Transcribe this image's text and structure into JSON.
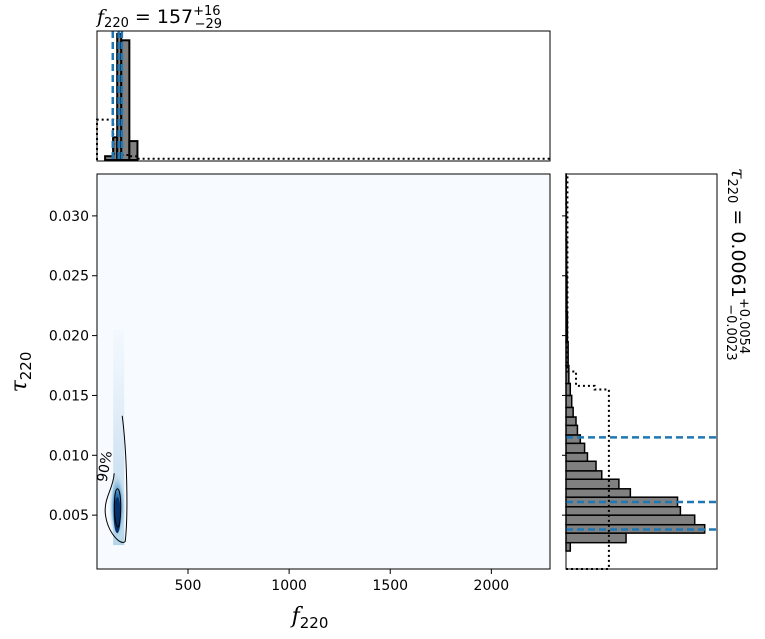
{
  "chart_data": {
    "type": "corner",
    "main": {
      "type": "heatmap",
      "x": {
        "symbol": "f",
        "subscript": "220",
        "ticks": [
          500,
          1000,
          1500,
          2000
        ],
        "range": [
          50,
          2290
        ]
      },
      "y": {
        "symbol": "τ",
        "subscript": "220",
        "ticks": [
          0.005,
          0.01,
          0.015,
          0.02,
          0.025,
          0.03
        ],
        "tick_labels": [
          "0.005",
          "0.010",
          "0.015",
          "0.020",
          "0.025",
          "0.030"
        ],
        "range": [
          0.0005,
          0.0335
        ]
      },
      "colormap": "Blues",
      "density_peak": {
        "x": 150,
        "y": 0.005
      },
      "contour_label": "90%"
    },
    "top_histogram": {
      "title": {
        "symbol": "f",
        "subscript": "220",
        "median": "157",
        "plus": "+16",
        "minus": "−29"
      },
      "bin_edges": [
        50,
        90,
        130,
        150,
        170,
        210,
        250,
        2290
      ],
      "posterior_counts": [
        0,
        0.03,
        0.18,
        1.0,
        0.95,
        0.15,
        0.0
      ],
      "prior_counts": [
        0.32,
        0.32,
        0.05,
        0.05,
        0.04,
        0.03,
        0.01
      ],
      "quantile_lines": [
        128,
        157,
        173
      ]
    },
    "right_histogram": {
      "title": {
        "symbol": "τ",
        "subscript": "220",
        "median": "0.0061",
        "plus": "+0.0054",
        "minus": "−0.0023"
      },
      "bins": [
        0.002,
        0.0027,
        0.0035,
        0.0042,
        0.005,
        0.0057,
        0.0065,
        0.0072,
        0.008,
        0.0087,
        0.0095,
        0.0102,
        0.011,
        0.0117,
        0.0125,
        0.0132,
        0.014,
        0.015,
        0.016,
        0.0175,
        0.0195,
        0.022,
        0.025,
        0.028,
        0.031,
        0.0335
      ],
      "posterior_counts": [
        0.03,
        0.42,
        0.97,
        0.9,
        0.8,
        0.78,
        0.45,
        0.37,
        0.25,
        0.21,
        0.15,
        0.13,
        0.1,
        0.08,
        0.07,
        0.05,
        0.04,
        0.03,
        0.02,
        0.015,
        0.01,
        0.007,
        0.005,
        0.003,
        0.002
      ],
      "prior_outline": [
        {
          "y0": 0.0,
          "y1": 0.0005,
          "w": 0.3
        },
        {
          "y0": 0.0005,
          "y1": 0.0155,
          "w": 0.3
        },
        {
          "y0": 0.0155,
          "y1": 0.0158,
          "w": 0.2
        },
        {
          "y0": 0.0158,
          "y1": 0.017,
          "w": 0.07
        },
        {
          "y0": 0.017,
          "y1": 0.0335,
          "w": 0.01
        }
      ],
      "quantile_lines": [
        0.0038,
        0.0061,
        0.0115
      ]
    }
  }
}
